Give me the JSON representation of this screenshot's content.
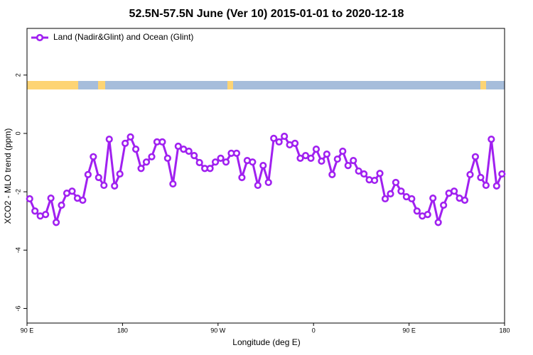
{
  "chart_data": {
    "type": "line",
    "title": "52.5N-57.5N June (Ver 10)   2015-01-01 to 2020-12-18",
    "x_label": "Longitude (deg E)",
    "y_label": "XCO2 - MLO trend (ppm)",
    "x": [
      92.5,
      97.5,
      102.5,
      107.5,
      112.5,
      117.5,
      122.5,
      127.5,
      132.5,
      137.5,
      142.5,
      147.5,
      152.5,
      157.5,
      162.5,
      167.5,
      172.5,
      177.5,
      182.5,
      187.5,
      192.5,
      197.5,
      202.5,
      207.5,
      212.5,
      217.5,
      222.5,
      227.5,
      232.5,
      237.5,
      242.5,
      247.5,
      252.5,
      257.5,
      262.5,
      267.5,
      272.5,
      277.5,
      282.5,
      287.5,
      292.5,
      297.5,
      302.5,
      307.5,
      312.5,
      317.5,
      322.5,
      327.5,
      332.5,
      337.5,
      342.5,
      347.5,
      352.5,
      357.5,
      362.5,
      367.5,
      372.5,
      377.5,
      382.5,
      387.5,
      392.5,
      397.5,
      402.5,
      407.5,
      412.5,
      417.5,
      422.5,
      427.5,
      432.5,
      437.5,
      442.5,
      447.5,
      452.5,
      457.5,
      462.5,
      467.5,
      472.5,
      477.5,
      482.5,
      487.5,
      492.5,
      497.5,
      502.5,
      507.5,
      512.5,
      517.5,
      522.5,
      527.5,
      532.5,
      537.5
    ],
    "series": [
      {
        "name": "Land (Nadir&Glint) and Ocean (Glint)",
        "color": "#a020f0",
        "values": [
          -2.24,
          -2.66,
          -2.83,
          -2.78,
          -2.22,
          -3.05,
          -2.46,
          -2.05,
          -1.98,
          -2.22,
          -2.29,
          -1.41,
          -0.8,
          -1.51,
          -1.78,
          -0.2,
          -1.8,
          -1.39,
          -0.34,
          -0.12,
          -0.54,
          -1.2,
          -0.98,
          -0.8,
          -0.29,
          -0.29,
          -0.85,
          -1.73,
          -0.44,
          -0.54,
          -0.61,
          -0.76,
          -1.0,
          -1.2,
          -1.2,
          -0.98,
          -0.85,
          -0.98,
          -0.68,
          -0.68,
          -1.51,
          -0.93,
          -0.98,
          -1.78,
          -1.1,
          -1.68,
          -0.17,
          -0.29,
          -0.1,
          -0.39,
          -0.34,
          -0.85,
          -0.76,
          -0.85,
          -0.54,
          -0.95,
          -0.71,
          -1.41,
          -0.88,
          -0.61,
          -1.1,
          -0.93,
          -1.29,
          -1.39,
          -1.59,
          -1.61,
          -1.37,
          -2.24,
          -2.07,
          -1.68,
          -1.98,
          -2.17,
          -2.24,
          -2.66,
          -2.83,
          -2.78,
          -2.22,
          -3.05,
          -2.46,
          -2.05,
          -1.98,
          -2.22,
          -2.29,
          -1.41,
          -0.8,
          -1.51,
          -1.78,
          -0.2,
          -1.8,
          -1.39
        ]
      }
    ],
    "xlim": [
      90,
      540
    ],
    "xticks": [
      {
        "value": 90,
        "label": "90 E"
      },
      180,
      {
        "value": 270,
        "label": "90 W"
      },
      {
        "value": 360,
        "label": "0"
      },
      {
        "value": 450,
        "label": "90 E"
      },
      {
        "value": 540,
        "label": "180"
      }
    ],
    "ylim": [
      -6.5,
      3.6
    ],
    "yticks": [
      -6,
      -4,
      -2,
      0,
      2
    ],
    "legend": "top-left"
  }
}
